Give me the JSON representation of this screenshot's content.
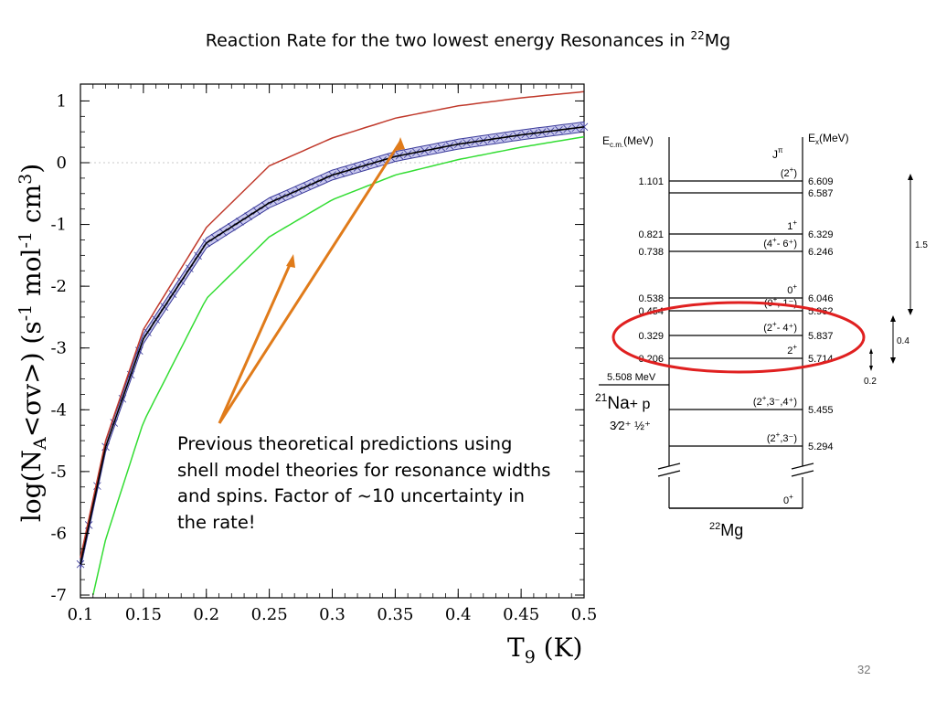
{
  "title": {
    "text": "Reaction Rate for the two lowest energy Resonances in ",
    "superscript": "22",
    "element": "Mg"
  },
  "annotation": "Previous theoretical predictions using shell model theories for resonance widths and spins.  Factor of ~10 uncertainty in the rate!",
  "page_number": "32",
  "colors": {
    "upper_curve": "#c0392b",
    "central_curve": "#000000",
    "band": "#3a3a9a",
    "lower_curve": "#33dd33",
    "arrows": "#e07b1a",
    "ellipse": "#e02020"
  },
  "chart_data": [
    {
      "type": "line",
      "xlabel": "T",
      "xlabel_sub": "9",
      "xlabel_unit": " (K)",
      "ylabel": "log(N_A<σv>) (s^-1 mol^-1 cm^3)",
      "xlim": [
        0.1,
        0.5
      ],
      "ylim": [
        -7,
        1.3
      ],
      "x_ticks": [
        "0.1",
        "0.15",
        "0.2",
        "0.25",
        "0.3",
        "0.35",
        "0.4",
        "0.45",
        "0.5"
      ],
      "y_ticks": [
        "1",
        "0",
        "-1",
        "-2",
        "-3",
        "-4",
        "-5",
        "-6",
        "-7"
      ],
      "series": [
        {
          "role": "upper",
          "x": [
            0.1,
            0.12,
            0.15,
            0.2,
            0.25,
            0.3,
            0.35,
            0.4,
            0.45,
            0.5
          ],
          "y": [
            -6.4,
            -4.5,
            -2.7,
            -1.05,
            -0.05,
            0.4,
            0.72,
            0.92,
            1.05,
            1.15
          ]
        },
        {
          "role": "central",
          "x": [
            0.1,
            0.12,
            0.15,
            0.2,
            0.25,
            0.3,
            0.35,
            0.4,
            0.45,
            0.5
          ],
          "y": [
            -6.5,
            -4.6,
            -2.85,
            -1.3,
            -0.65,
            -0.2,
            0.1,
            0.3,
            0.45,
            0.58
          ]
        },
        {
          "role": "lower",
          "x": [
            0.11,
            0.12,
            0.15,
            0.2,
            0.25,
            0.3,
            0.35,
            0.4,
            0.45,
            0.5
          ],
          "y": [
            -7.0,
            -6.1,
            -4.2,
            -2.2,
            -1.2,
            -0.6,
            -0.2,
            0.05,
            0.25,
            0.42
          ]
        }
      ],
      "band_halfwidth": 0.08
    }
  ],
  "level_diagram": {
    "header_left": "E",
    "header_left_sub": "c.m.",
    "header_left_unit": "(MeV)",
    "header_right": "E",
    "header_right_sub": "x",
    "header_right_unit": "(MeV)",
    "jpi_label": "J",
    "jpi_sup": "π",
    "levels": [
      {
        "ecm": "1.101",
        "ex": "6.609",
        "jpi": "(2",
        "jpi_sup": "+",
        "jpi_end": ")"
      },
      {
        "ecm": "",
        "ex": "6.587",
        "jpi": "",
        "jpi_sup": "",
        "jpi_end": ""
      },
      {
        "ecm": "0.821",
        "ex": "6.329",
        "jpi": "1",
        "jpi_sup": "+",
        "jpi_end": ""
      },
      {
        "ecm": "0.738",
        "ex": "6.246",
        "jpi": "(4",
        "jpi_sup": "+",
        "jpi_end": "- 6⁺)"
      },
      {
        "ecm": "0.538",
        "ex": "6.046",
        "jpi": "0",
        "jpi_sup": "+",
        "jpi_end": ""
      },
      {
        "ecm": "0.454",
        "ex": "5.962",
        "jpi": "(0",
        "jpi_sup": "+",
        "jpi_end": ",  1⁻)"
      },
      {
        "ecm": "0.329",
        "ex": "5.837",
        "jpi": "(2",
        "jpi_sup": "+",
        "jpi_end": "- 4⁺)"
      },
      {
        "ecm": "0.206",
        "ex": "5.714",
        "jpi": "2",
        "jpi_sup": "+",
        "jpi_end": ""
      },
      {
        "ecm": "",
        "ex": "5.455",
        "jpi": "(2",
        "jpi_sup": "+",
        "jpi_end": ",3⁻,4⁺)"
      },
      {
        "ecm": "",
        "ex": "5.294",
        "jpi": "(2",
        "jpi_sup": "+",
        "jpi_end": ",3⁻)"
      }
    ],
    "threshold_label": "5.508 MeV",
    "threshold_nucleus_mass": "21",
    "threshold_nucleus": "Na",
    "threshold_plus": "+ p",
    "threshold_spins": "3⁄2⁺  ½⁺",
    "ground_state": "0",
    "ground_state_sup": "+",
    "nucleus_mass": "22",
    "nucleus": "Mg",
    "scale_bars": [
      "1.5",
      "0.4",
      "0.2"
    ]
  }
}
